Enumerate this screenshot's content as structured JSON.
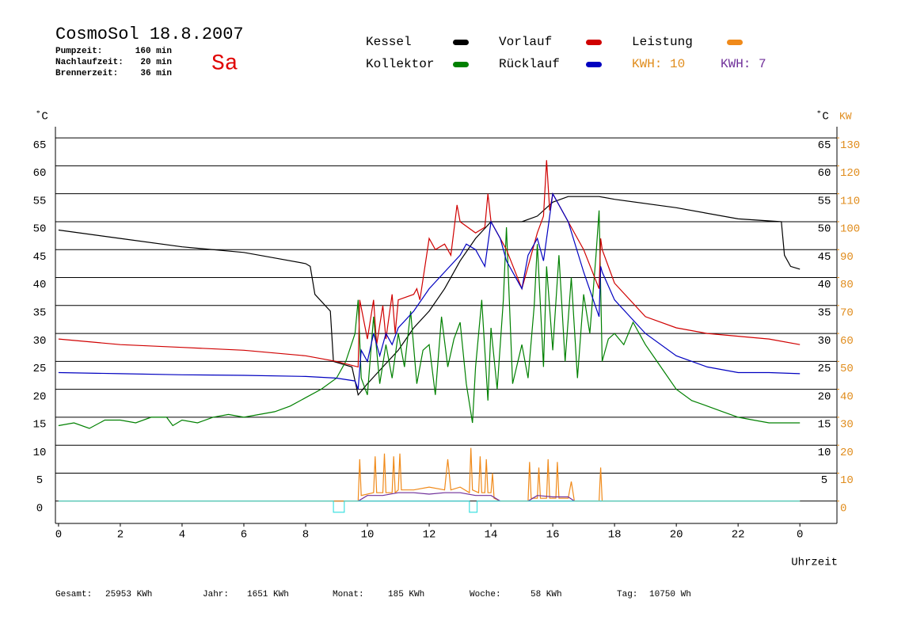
{
  "chart_data": {
    "type": "line",
    "title": "CosmoSol 18.8.2007",
    "day": "Sa",
    "info": [
      {
        "label": "Pumpzeit:",
        "value": "160 min"
      },
      {
        "label": "Nachlaufzeit:",
        "value": "20 min"
      },
      {
        "label": "Brennerzeit:",
        "value": "36 min"
      }
    ],
    "kwh_labels": [
      {
        "text": "KWH: 10",
        "color": "#e08c1c"
      },
      {
        "text": "KWH: 7",
        "color": "#70309a"
      }
    ],
    "y_unit": "˚C",
    "y_unit_right": "˚C",
    "y2_unit": "KW",
    "xlabel": "Uhrzeit",
    "xlim": [
      -0.1,
      25.2
    ],
    "xticks": [
      0,
      2,
      4,
      6,
      8,
      10,
      12,
      14,
      16,
      18,
      20,
      22,
      {
        "value": 24,
        "label": "0"
      }
    ],
    "ylim": [
      -4,
      67
    ],
    "yticks": [
      0,
      5,
      10,
      15,
      20,
      25,
      30,
      35,
      40,
      45,
      50,
      55,
      60,
      65
    ],
    "yticks_right": [
      5,
      10,
      15,
      20,
      25,
      30,
      35,
      40,
      45,
      50,
      55,
      60,
      65
    ],
    "y2lim": [
      -8,
      134
    ],
    "y2ticks": [
      0,
      10,
      20,
      30,
      40,
      50,
      60,
      70,
      80,
      90,
      100,
      110,
      120,
      130
    ],
    "y2_color": "#e08c1c",
    "grid": true,
    "series": [
      {
        "name": "Kessel",
        "color": "#000000",
        "x": [
          0,
          2,
          4,
          6,
          7,
          8,
          8.15,
          8.3,
          8.8,
          8.9,
          9.5,
          9.7,
          10,
          10.5,
          11,
          11.5,
          12,
          12.5,
          13,
          13.5,
          14,
          15,
          15.5,
          16,
          16.5,
          17.5,
          18,
          20,
          22,
          23.4,
          23.5,
          23.7,
          24
        ],
        "values": [
          48.5,
          47,
          45.5,
          44.5,
          43.5,
          42.5,
          42,
          37,
          34,
          25,
          24,
          19,
          21,
          24,
          27,
          31,
          34,
          38,
          43,
          47,
          50,
          50,
          51,
          53.5,
          54.5,
          54.5,
          54,
          52.5,
          50.5,
          50,
          44,
          42,
          41.5
        ]
      },
      {
        "name": "Kollektor",
        "color": "#008000",
        "x": [
          0,
          0.5,
          1,
          1.5,
          2,
          2.5,
          3,
          3.5,
          3.7,
          4,
          4.5,
          5,
          5.5,
          6,
          6.5,
          7,
          7.5,
          8,
          8.5,
          9,
          9.3,
          9.6,
          9.7,
          9.8,
          10,
          10.2,
          10.4,
          10.6,
          10.8,
          11,
          11.2,
          11.4,
          11.6,
          11.8,
          12,
          12.2,
          12.4,
          12.6,
          12.8,
          13,
          13.2,
          13.4,
          13.5,
          13.7,
          13.9,
          14,
          14.2,
          14.4,
          14.5,
          14.7,
          15,
          15.2,
          15.4,
          15.5,
          15.7,
          15.8,
          16,
          16.2,
          16.4,
          16.6,
          16.8,
          17,
          17.2,
          17.4,
          17.5,
          17.6,
          17.8,
          18,
          18.3,
          18.6,
          19,
          19.5,
          20,
          20.5,
          21,
          21.5,
          22,
          22.5,
          23,
          23.5,
          24
        ],
        "values": [
          13.5,
          14,
          13,
          14.5,
          14.5,
          14,
          15,
          15,
          13.5,
          14.5,
          14,
          15,
          15.5,
          15,
          15.5,
          16,
          17,
          18.5,
          20,
          22,
          25,
          30,
          36,
          22,
          19,
          33,
          21,
          28,
          22,
          30,
          24,
          34,
          21,
          27,
          28,
          19,
          33,
          24,
          29,
          32,
          21,
          14,
          24,
          36,
          18,
          31,
          20,
          36,
          49,
          21,
          28,
          22,
          35,
          46,
          24,
          42,
          27,
          44,
          25,
          40,
          22,
          37,
          30,
          44,
          52,
          25,
          29,
          30,
          28,
          32,
          28,
          24,
          20,
          18,
          17,
          16,
          15,
          14.5,
          14,
          14,
          14
        ]
      },
      {
        "name": "Vorlauf",
        "color": "#d00000",
        "x": [
          0,
          2,
          4,
          6,
          8,
          9,
          9.7,
          9.75,
          10,
          10.2,
          10.3,
          10.5,
          10.6,
          10.8,
          10.9,
          11,
          11.5,
          11.6,
          11.7,
          12,
          12.2,
          12.5,
          12.7,
          12.9,
          13,
          13.5,
          13.8,
          13.9,
          14,
          14.5,
          15,
          15.3,
          15.5,
          15.7,
          15.8,
          15.9,
          16,
          16.5,
          17,
          17.5,
          17.55,
          17.6,
          18,
          19,
          20,
          21,
          22,
          23,
          24
        ],
        "values": [
          29,
          28,
          27.5,
          27,
          26,
          25,
          24,
          36,
          29,
          36,
          28,
          35,
          29,
          37,
          30,
          36,
          37,
          38,
          36,
          47,
          45,
          46,
          44,
          53,
          50,
          48,
          49,
          55,
          50,
          45,
          38,
          44,
          48,
          51,
          61,
          52,
          55,
          50,
          45,
          38,
          47,
          45,
          39,
          33,
          31,
          30,
          29.5,
          29,
          28
        ]
      },
      {
        "name": "Rücklauf",
        "color": "#0000c0",
        "x": [
          0,
          2,
          4,
          6,
          8,
          9,
          9.6,
          9.7,
          9.8,
          10,
          10.2,
          10.4,
          10.6,
          10.8,
          11,
          11.5,
          12,
          12.5,
          13,
          13.2,
          13.5,
          13.8,
          14,
          14.3,
          14.5,
          15,
          15.2,
          15.5,
          15.7,
          16,
          16.5,
          17,
          17.5,
          17.55,
          17.6,
          18,
          19,
          20,
          21,
          22,
          23,
          24
        ],
        "values": [
          23,
          22.8,
          22.6,
          22.5,
          22.3,
          22,
          21.5,
          20,
          27,
          25,
          30,
          26,
          30,
          28,
          31,
          34,
          38,
          41,
          44,
          46,
          45,
          42,
          50,
          47,
          43,
          38,
          44,
          47,
          43,
          55,
          50,
          41,
          33,
          42,
          41,
          36,
          30,
          26,
          24,
          23,
          23,
          22.8
        ]
      },
      {
        "name": "Leistung",
        "color": "#f08a1a",
        "axis": "y2",
        "x": [
          0,
          9.7,
          9.75,
          9.8,
          10.2,
          10.25,
          10.3,
          10.5,
          10.55,
          10.6,
          10.8,
          10.85,
          10.9,
          11,
          11.05,
          11.1,
          11.5,
          12,
          12.5,
          12.6,
          12.7,
          13,
          13.3,
          13.35,
          13.4,
          13.6,
          13.65,
          13.7,
          13.8,
          13.85,
          13.9,
          14,
          14.05,
          14.1,
          14.3,
          15.2,
          15.25,
          15.3,
          15.5,
          15.55,
          15.6,
          15.8,
          15.85,
          15.9,
          16.1,
          16.15,
          16.2,
          16.5,
          16.6,
          16.7,
          17.5,
          17.55,
          17.6,
          24
        ],
        "values": [
          0,
          0,
          15,
          2,
          3,
          16,
          3,
          3,
          17,
          3,
          3,
          16,
          3,
          4,
          17,
          4,
          4,
          5,
          4,
          15,
          4,
          5,
          3,
          19,
          4,
          3,
          16,
          3,
          3,
          15,
          3,
          3,
          10,
          1,
          0,
          0,
          14,
          1,
          1,
          12,
          1,
          1,
          15,
          1,
          1,
          14,
          1,
          1,
          7,
          0,
          0,
          12,
          0,
          0
        ]
      },
      {
        "color": "#70309a",
        "axis": "y2",
        "x": [
          9.7,
          10,
          10.5,
          11,
          11.5,
          12,
          12.5,
          13,
          13.5,
          14,
          14.3,
          14.4,
          15.2,
          15.5,
          16,
          16.5,
          16.7
        ],
        "values": [
          0,
          2,
          2,
          3,
          3,
          2.5,
          3,
          3,
          2,
          2,
          0,
          null,
          0,
          2,
          1.5,
          1.5,
          0
        ]
      },
      {
        "color": "#40e0e0",
        "x": [
          0,
          8.9,
          8.9,
          9.25,
          9.25,
          13.3,
          13.3,
          13.55,
          13.55,
          24
        ],
        "values": [
          0,
          0,
          -2,
          -2,
          0,
          0,
          -2,
          -2,
          0,
          0
        ]
      }
    ],
    "totals": [
      {
        "label": "Gesamt:",
        "value": "25953 KWh"
      },
      {
        "label": "Jahr:",
        "value": "1651 KWh"
      },
      {
        "label": "Monat:",
        "value": "185 KWh"
      },
      {
        "label": "Woche:",
        "value": "58 KWh"
      },
      {
        "label": "Tag:",
        "value": "10750 Wh"
      }
    ]
  }
}
